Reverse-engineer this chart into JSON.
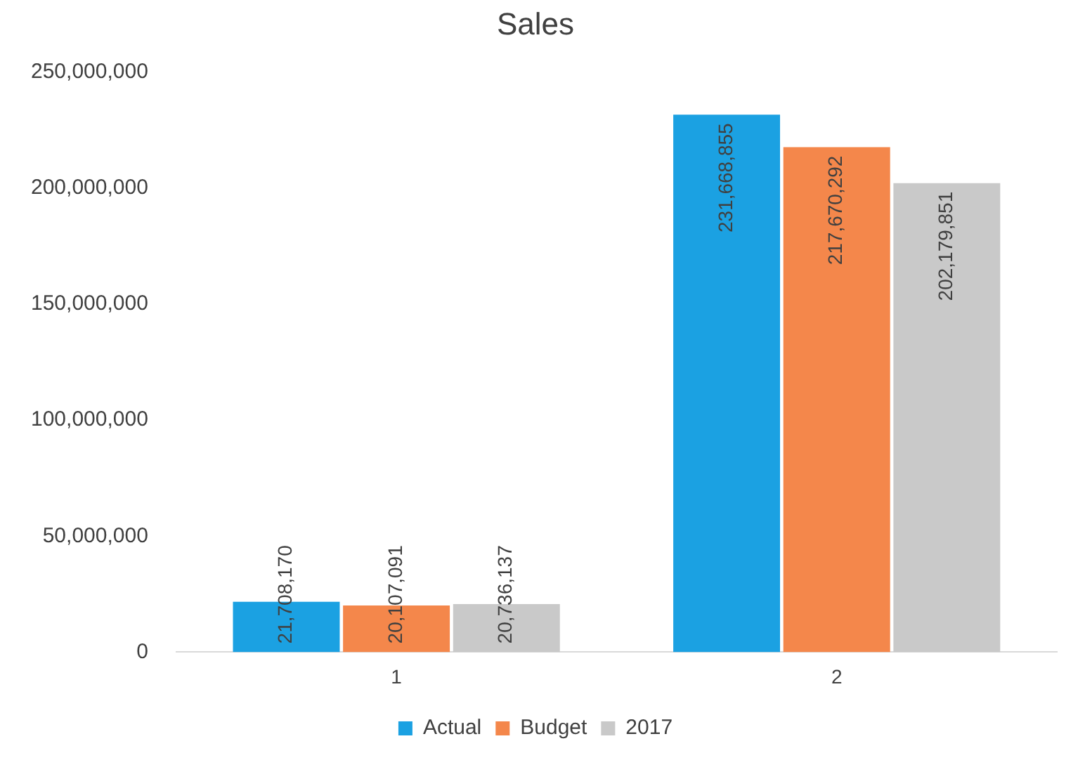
{
  "chart_data": {
    "type": "bar",
    "title": "Sales",
    "categories": [
      "1",
      "2"
    ],
    "series": [
      {
        "name": "Actual",
        "color": "#1ba1e2",
        "values": [
          21708170,
          231668855
        ],
        "value_labels": [
          "21,708,170",
          "231,668,855"
        ]
      },
      {
        "name": "Budget",
        "color": "#f4874b",
        "values": [
          20107091,
          217670292
        ],
        "value_labels": [
          "20,107,091",
          "217,670,292"
        ]
      },
      {
        "name": "2017",
        "color": "#c9c9c9",
        "values": [
          20736137,
          202179851
        ],
        "value_labels": [
          "20,736,137",
          "202,179,851"
        ]
      }
    ],
    "ylim": [
      0,
      250000000
    ],
    "yticks": [
      0,
      {
        "value": 50000000,
        "label": "50,000,000"
      },
      {
        "value": 100000000,
        "label": "100,000,000"
      },
      {
        "value": 150000000,
        "label": "150,000,000"
      },
      {
        "value": 200000000,
        "label": "200,000,000"
      },
      {
        "value": 250000000,
        "label": "250,000,000"
      }
    ],
    "grid": false,
    "legend": "bottom"
  }
}
